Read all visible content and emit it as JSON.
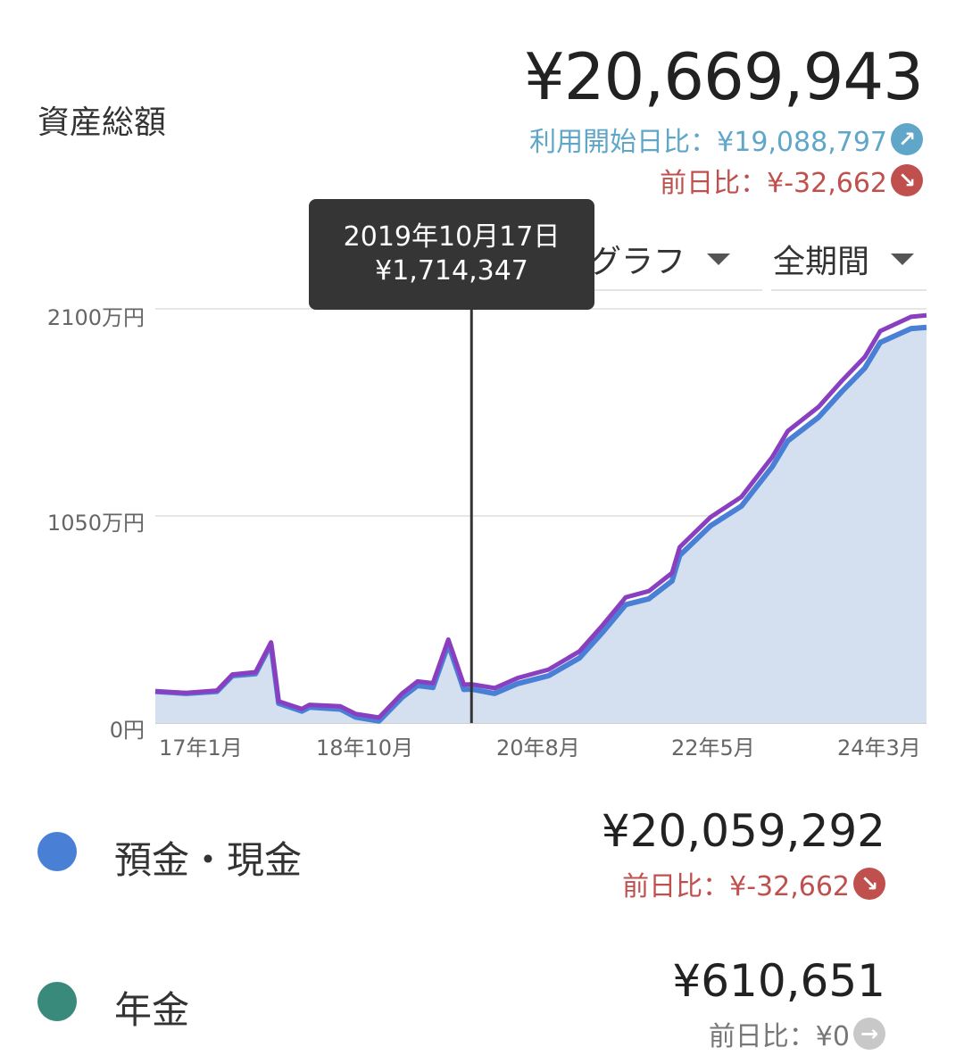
{
  "header": {
    "title": "資産総額",
    "total": "¥20,669,943",
    "since_start": "利用開始日比：¥19,088,797",
    "since_start_color": "#5fa6c9",
    "prev_day": "前日比：¥-32,662",
    "prev_day_color": "#c0504d"
  },
  "controls": {
    "graph_type": "グラフ",
    "period": "全期間"
  },
  "tooltip": {
    "date": "2019年10月17日",
    "value": "¥1,714,347"
  },
  "chart_data": {
    "type": "area",
    "y_ticks": [
      "2100万円",
      "1050万円",
      "0円"
    ],
    "x_ticks": [
      "17年1月",
      "18年10月",
      "20年8月",
      "22年5月",
      "24年3月"
    ],
    "ylim": [
      0,
      21000000
    ],
    "grid": true,
    "series": [
      {
        "color": "#4a7fd6",
        "x": [
          "2016-05",
          "2016-09",
          "2017-01",
          "2017-03",
          "2017-06",
          "2017-08",
          "2017-09",
          "2017-12",
          "2018-01",
          "2018-05",
          "2018-07",
          "2018-10",
          "2019-01",
          "2019-03",
          "2019-05",
          "2019-07",
          "2019-09",
          "2019-10",
          "2020-01",
          "2020-04",
          "2020-08",
          "2020-12",
          "2021-03",
          "2021-06",
          "2021-09",
          "2021-12",
          "2022-01",
          "2022-05",
          "2022-09",
          "2023-01",
          "2023-03",
          "2023-07",
          "2023-10",
          "2024-01",
          "2024-03",
          "2024-07",
          "2024-09"
        ],
        "values": [
          1600000,
          1500000,
          1600000,
          2400000,
          2500000,
          4000000,
          1000000,
          600000,
          800000,
          700000,
          300000,
          100000,
          1300000,
          1900000,
          1800000,
          4000000,
          1700000,
          1714347,
          1500000,
          2000000,
          2400000,
          3300000,
          4600000,
          6000000,
          6300000,
          7200000,
          8500000,
          10000000,
          11000000,
          13000000,
          14300000,
          15500000,
          16800000,
          18000000,
          19300000,
          20000000,
          20059292
        ]
      },
      {
        "color": "#3a8a7c",
        "x": [
          "2016-05",
          "2024-09"
        ],
        "values": [
          0,
          610651
        ]
      }
    ]
  },
  "legend": [
    {
      "name": "預金・現金",
      "color": "#4a7fd6",
      "value": "¥20,059,292",
      "diff": "前日比：¥-32,662",
      "diff_color": "#c0504d"
    },
    {
      "name": "年金",
      "color": "#3a8a7c",
      "value": "¥610,651",
      "diff": "前日比：¥0",
      "diff_color": "#777777"
    }
  ]
}
